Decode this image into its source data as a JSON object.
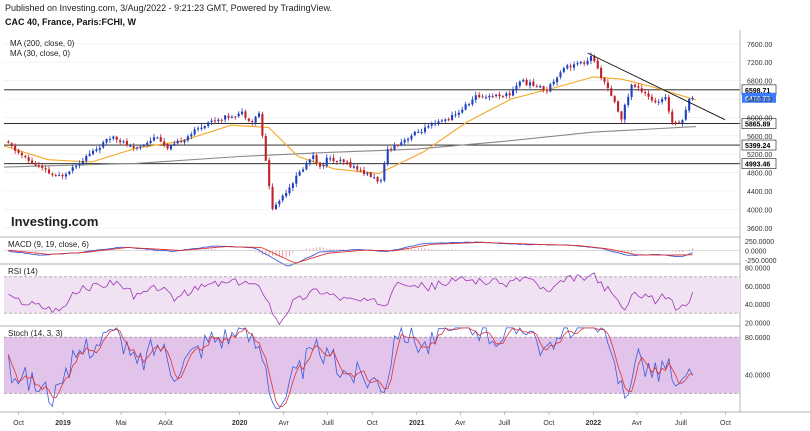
{
  "header": {
    "published": "Published on Investing.com, 3/Aug/2022 - 9:21:23 GMT, Powered by TradingView.",
    "symbol": "CAC 40, France, Paris:FCHI, W"
  },
  "watermark": "Investing.com",
  "chart_data": {
    "type": "candlestick",
    "title": "CAC 40, France, Paris:FCHI, W",
    "ylim": [
      3400,
      7900
    ],
    "y_ticks": [
      3600,
      4000,
      4400,
      4800,
      5200,
      5600,
      6000,
      6400,
      6800,
      7200,
      7600
    ],
    "y_tick_labels": [
      "3600.00",
      "4000.00",
      "4400.00",
      "4800.00",
      "5200.00",
      "5600.00",
      "6000.00",
      "6400.00",
      "6800.00",
      "7200.00",
      "7600.00"
    ],
    "x_ticks": [
      {
        "label": "Oct",
        "date": "2018-10-01"
      },
      {
        "label": "2019",
        "date": "2019-01-01"
      },
      {
        "label": "Mai",
        "date": "2019-05-01"
      },
      {
        "label": "Août",
        "date": "2019-08-01"
      },
      {
        "label": "2020",
        "date": "2020-01-01"
      },
      {
        "label": "Avr",
        "date": "2020-04-01"
      },
      {
        "label": "Juill",
        "date": "2020-07-01"
      },
      {
        "label": "Oct",
        "date": "2020-10-01"
      },
      {
        "label": "2021",
        "date": "2021-01-01"
      },
      {
        "label": "Avr",
        "date": "2021-04-01"
      },
      {
        "label": "Juill",
        "date": "2021-07-01"
      },
      {
        "label": "Oct",
        "date": "2021-10-01"
      },
      {
        "label": "2022",
        "date": "2022-01-01"
      },
      {
        "label": "Avr",
        "date": "2022-04-01"
      },
      {
        "label": "Juill",
        "date": "2022-07-01"
      },
      {
        "label": "Oct",
        "date": "2022-10-01"
      }
    ],
    "x_range": [
      "2018-09-01",
      "2022-10-31"
    ],
    "legend": [
      "MA (200, close, 0)",
      "MA (30, close, 0)"
    ],
    "series": [
      {
        "name": "MA (30, close, 0)",
        "color": "#f5a623",
        "points": [
          [
            "2018-09-01",
            5380
          ],
          [
            "2018-12-01",
            5080
          ],
          [
            "2019-03-01",
            5030
          ],
          [
            "2019-06-01",
            5330
          ],
          [
            "2019-09-01",
            5480
          ],
          [
            "2019-12-15",
            5830
          ],
          [
            "2020-03-01",
            5780
          ],
          [
            "2020-05-01",
            5150
          ],
          [
            "2020-07-15",
            4880
          ],
          [
            "2020-10-15",
            4780
          ],
          [
            "2021-01-15",
            5250
          ],
          [
            "2021-04-15",
            5900
          ],
          [
            "2021-07-15",
            6400
          ],
          [
            "2021-10-15",
            6650
          ],
          [
            "2022-01-01",
            6880
          ],
          [
            "2022-03-01",
            6830
          ],
          [
            "2022-05-01",
            6670
          ],
          [
            "2022-08-01",
            6380
          ]
        ]
      },
      {
        "name": "MA (200, close, 0)",
        "color": "#888888",
        "points": [
          [
            "2018-09-01",
            4920
          ],
          [
            "2019-06-01",
            5000
          ],
          [
            "2020-01-01",
            5150
          ],
          [
            "2020-07-01",
            5240
          ],
          [
            "2021-01-01",
            5310
          ],
          [
            "2021-07-01",
            5480
          ],
          [
            "2022-01-01",
            5680
          ],
          [
            "2022-08-01",
            5800
          ]
        ]
      }
    ],
    "trendlines": [
      {
        "from": [
          "2021-12-20",
          7400
        ],
        "to": [
          "2022-09-30",
          5950
        ]
      }
    ],
    "horizontal_levels": [
      {
        "value": 6598.71,
        "label": "6598.71"
      },
      {
        "value": 5865.89,
        "label": "5865.89"
      },
      {
        "value": 5399.24,
        "label": "5399.24"
      },
      {
        "value": 4993.46,
        "label": "4993.46"
      }
    ],
    "last_price": {
      "value": 6426.79,
      "label": "6426.79",
      "color": "#3b7bff"
    },
    "anchors": [
      [
        "2018-09-10",
        5470
      ],
      [
        "2018-10-29",
        5050
      ],
      [
        "2018-12-24",
        4700
      ],
      [
        "2019-01-07",
        4750
      ],
      [
        "2019-04-22",
        5600
      ],
      [
        "2019-06-03",
        5300
      ],
      [
        "2019-07-22",
        5600
      ],
      [
        "2019-08-12",
        5300
      ],
      [
        "2019-11-04",
        5900
      ],
      [
        "2020-01-13",
        6100
      ],
      [
        "2020-02-03",
        5900
      ],
      [
        "2020-02-17",
        6100
      ],
      [
        "2020-03-16",
        4000
      ],
      [
        "2020-06-08",
        5200
      ],
      [
        "2020-06-22",
        4900
      ],
      [
        "2020-07-06",
        5100
      ],
      [
        "2020-08-17",
        5000
      ],
      [
        "2020-10-26",
        4600
      ],
      [
        "2020-11-09",
        5300
      ],
      [
        "2021-01-04",
        5650
      ],
      [
        "2021-03-29",
        6050
      ],
      [
        "2021-05-10",
        6450
      ],
      [
        "2021-07-19",
        6500
      ],
      [
        "2021-08-09",
        6800
      ],
      [
        "2021-10-04",
        6600
      ],
      [
        "2021-11-08",
        7100
      ],
      [
        "2021-12-27",
        7200
      ],
      [
        "2022-01-03",
        7350
      ],
      [
        "2022-03-07",
        6000
      ],
      [
        "2022-03-28",
        6700
      ],
      [
        "2022-04-25",
        6550
      ],
      [
        "2022-05-16",
        6300
      ],
      [
        "2022-06-06",
        6400
      ],
      [
        "2022-06-20",
        5900
      ],
      [
        "2022-07-11",
        5950
      ],
      [
        "2022-07-25",
        6400
      ]
    ],
    "candle_weeks": 206,
    "up_color": "#1f3fbf",
    "down_color": "#c0202a",
    "indicators": [
      {
        "name": "MACD (9, 19, close, 6)",
        "ylim": [
          -350000,
          350000
        ],
        "ticks": [
          -250000,
          0,
          250000
        ],
        "tick_labels": [
          "-250.0000",
          "0.0000",
          "250.0000"
        ],
        "macd_anchors": [
          [
            "2018-09-01",
            0
          ],
          [
            "2018-11-15",
            -120000
          ],
          [
            "2019-02-01",
            -60000
          ],
          [
            "2019-05-01",
            90000
          ],
          [
            "2019-08-15",
            -20000
          ],
          [
            "2019-11-15",
            120000
          ],
          [
            "2020-02-01",
            70000
          ],
          [
            "2020-04-10",
            -420000
          ],
          [
            "2020-06-15",
            -40000
          ],
          [
            "2020-09-01",
            30000
          ],
          [
            "2020-11-01",
            -30000
          ],
          [
            "2021-01-15",
            180000
          ],
          [
            "2021-05-01",
            220000
          ],
          [
            "2021-08-01",
            160000
          ],
          [
            "2021-11-15",
            140000
          ],
          [
            "2022-01-15",
            60000
          ],
          [
            "2022-03-15",
            -130000
          ],
          [
            "2022-05-15",
            -100000
          ],
          [
            "2022-07-01",
            -170000
          ],
          [
            "2022-07-31",
            -30000
          ]
        ],
        "signal_anchors": [
          [
            "2018-09-01",
            20000
          ],
          [
            "2018-12-01",
            -100000
          ],
          [
            "2019-02-15",
            -50000
          ],
          [
            "2019-05-15",
            80000
          ],
          [
            "2019-09-01",
            0
          ],
          [
            "2019-12-01",
            100000
          ],
          [
            "2020-02-15",
            80000
          ],
          [
            "2020-04-25",
            -330000
          ],
          [
            "2020-07-01",
            -70000
          ],
          [
            "2020-09-15",
            10000
          ],
          [
            "2020-11-15",
            -10000
          ],
          [
            "2021-02-01",
            160000
          ],
          [
            "2021-05-15",
            210000
          ],
          [
            "2021-08-15",
            170000
          ],
          [
            "2021-12-01",
            130000
          ],
          [
            "2022-02-01",
            40000
          ],
          [
            "2022-04-01",
            -110000
          ],
          [
            "2022-06-01",
            -120000
          ],
          [
            "2022-07-31",
            -110000
          ]
        ]
      },
      {
        "name": "RSI (14)",
        "ylim": [
          16,
          84
        ],
        "ticks": [
          20,
          40,
          60,
          80
        ],
        "tick_labels": [
          "20.0000",
          "40.0000",
          "60.0000",
          "80.0000"
        ],
        "band": [
          30,
          70
        ],
        "anchors": [
          [
            "2018-09-01",
            48
          ],
          [
            "2018-11-01",
            40
          ],
          [
            "2018-12-24",
            33
          ],
          [
            "2019-02-01",
            55
          ],
          [
            "2019-04-20",
            65
          ],
          [
            "2019-06-01",
            48
          ],
          [
            "2019-07-20",
            60
          ],
          [
            "2019-08-15",
            46
          ],
          [
            "2019-11-01",
            62
          ],
          [
            "2020-01-15",
            64
          ],
          [
            "2020-02-20",
            55
          ],
          [
            "2020-03-20",
            18
          ],
          [
            "2020-04-20",
            42
          ],
          [
            "2020-06-10",
            56
          ],
          [
            "2020-08-01",
            46
          ],
          [
            "2020-10-30",
            40
          ],
          [
            "2020-11-20",
            68
          ],
          [
            "2021-01-20",
            58
          ],
          [
            "2021-04-10",
            68
          ],
          [
            "2021-07-01",
            62
          ],
          [
            "2021-08-15",
            70
          ],
          [
            "2021-10-01",
            52
          ],
          [
            "2021-11-10",
            68
          ],
          [
            "2022-01-05",
            70
          ],
          [
            "2022-03-08",
            34
          ],
          [
            "2022-03-30",
            54
          ],
          [
            "2022-05-10",
            44
          ],
          [
            "2022-06-05",
            50
          ],
          [
            "2022-06-20",
            34
          ],
          [
            "2022-07-10",
            40
          ],
          [
            "2022-07-31",
            52
          ]
        ]
      },
      {
        "name": "Stoch (14, 3, 3)",
        "ylim": [
          0,
          92
        ],
        "ticks": [
          40,
          80
        ],
        "tick_labels": [
          "40.0000",
          "80.0000"
        ],
        "band": [
          20,
          80
        ]
      }
    ]
  }
}
